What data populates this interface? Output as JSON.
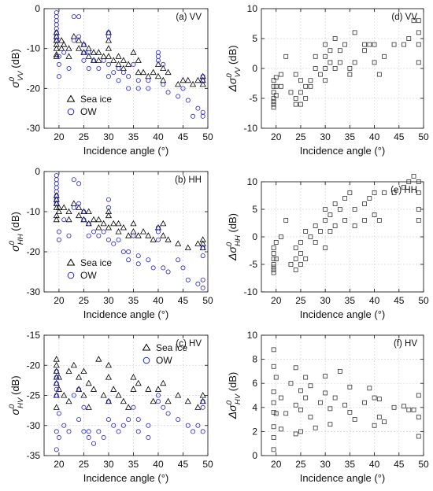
{
  "figure": {
    "colors": {
      "sea_ice": "#000000",
      "ow": "#2323d8",
      "diff": "#333333"
    },
    "legend": {
      "sea_ice": "Sea ice",
      "ow": "OW"
    }
  },
  "chart_data": [
    {
      "id": "a",
      "type": "scatter",
      "panel_label": "(a) VV",
      "xlabel": "Incidence angle (°)",
      "ylabel": {
        "main": "σ",
        "sup": "0",
        "sub": "VV",
        "unit": "(dB)"
      },
      "xlim": [
        17,
        50
      ],
      "ylim": [
        -30,
        0
      ],
      "xticks": [
        20,
        25,
        30,
        35,
        40,
        45,
        50
      ],
      "yticks": [
        0,
        -10,
        -20,
        -30
      ],
      "grid": true,
      "legend_position": "bottom-left",
      "series": [
        {
          "name": "Sea ice",
          "marker": "triangle",
          "x": [
            19.5,
            19.5,
            19.5,
            19.5,
            19.5,
            19.5,
            19.5,
            20.5,
            20.5,
            21,
            22,
            22,
            23,
            24,
            24,
            25,
            25,
            26,
            26,
            27,
            27,
            28,
            28,
            29,
            30,
            30,
            30,
            30,
            31,
            32,
            32,
            33,
            33,
            34,
            35,
            36,
            36,
            37,
            38,
            39,
            40,
            40,
            41,
            41,
            42,
            44,
            45,
            46,
            47,
            48,
            49,
            49,
            49
          ],
          "y": [
            -6,
            -7,
            -8,
            -9,
            -10,
            -11.5,
            -12,
            -8,
            -10,
            -9,
            -10,
            -12,
            -7,
            -8,
            -10,
            -9,
            -11,
            -10,
            -12,
            -11,
            -13,
            -11,
            -13,
            -12,
            -6,
            -8,
            -10,
            -12,
            -13,
            -12,
            -14,
            -13,
            -15,
            -14,
            -11,
            -13,
            -16,
            -16,
            -17,
            -16,
            -14,
            -17,
            -15,
            -18,
            -16,
            -19,
            -18,
            -18,
            -19,
            -18,
            -17,
            -18,
            -19
          ]
        },
        {
          "name": "OW",
          "marker": "circle",
          "x": [
            19.5,
            19.5,
            19.5,
            19.5,
            19.5,
            19.5,
            19.5,
            19.5,
            20,
            20,
            20,
            21,
            22,
            23,
            23,
            24,
            24,
            25,
            25,
            25,
            26,
            26,
            27,
            28,
            29,
            30,
            30,
            30,
            30,
            31,
            32,
            32,
            33,
            34,
            34,
            35,
            36,
            36,
            38,
            38,
            40,
            40,
            40,
            41,
            41,
            42,
            44,
            45,
            46,
            47,
            48,
            49,
            49,
            49,
            49
          ],
          "y": [
            -1,
            -2,
            -3,
            -4,
            -5,
            -6,
            -7,
            -8,
            -12,
            -14,
            -17,
            -11,
            -15,
            -2,
            -8,
            -2,
            -7,
            -9,
            -11,
            -13,
            -11,
            -15,
            -13,
            -15,
            -13,
            -6,
            -7,
            -14,
            -17,
            -16,
            -15,
            -18,
            -16,
            -17,
            -20,
            -14,
            -18,
            -20,
            -18,
            -20,
            -11,
            -12,
            -13,
            -14,
            -19,
            -21,
            -22,
            -20,
            -23,
            -27,
            -25,
            -17,
            -18,
            -26,
            -27
          ]
        }
      ]
    },
    {
      "id": "d",
      "type": "scatter",
      "panel_label": "(d) VV",
      "xlabel": "Incidence angle (°)",
      "ylabel": {
        "main": "Δσ",
        "sup": "0",
        "sub": "VV",
        "unit": "(dB)"
      },
      "xlim": [
        17,
        50
      ],
      "ylim": [
        -10,
        10
      ],
      "xticks": [
        20,
        25,
        30,
        35,
        40,
        45,
        50
      ],
      "yticks": [
        10,
        5,
        0,
        -5,
        -10
      ],
      "grid": true,
      "series": [
        {
          "name": "",
          "marker": "square",
          "x": [
            19.5,
            19.5,
            19.5,
            19.5,
            19.5,
            19.5,
            19.5,
            20,
            20,
            20,
            21,
            21,
            22,
            23,
            24,
            24,
            24,
            25,
            25,
            25,
            26,
            26,
            27,
            27,
            28,
            28,
            29,
            30,
            30,
            30,
            30,
            31,
            31,
            32,
            32,
            33,
            33,
            34,
            35,
            35,
            36,
            36,
            38,
            38,
            39,
            40,
            40,
            41,
            42,
            44,
            46,
            47,
            48,
            49,
            49,
            49,
            49
          ],
          "y": [
            -2,
            -3,
            -4,
            -5,
            -5.5,
            -6,
            -6.5,
            -1.5,
            -3,
            -4.5,
            -1,
            -3,
            2,
            -4,
            -1,
            -5,
            -6,
            -2,
            -4,
            -6,
            -3,
            -5,
            -2,
            -3,
            2,
            0,
            -1,
            4,
            2,
            0,
            -2,
            3,
            1,
            5,
            0,
            3,
            1,
            4,
            0,
            -1,
            6,
            1,
            4,
            3,
            4,
            4,
            1,
            -1,
            2,
            4,
            4,
            5,
            8,
            8,
            6,
            4,
            1
          ]
        }
      ]
    },
    {
      "id": "b",
      "type": "scatter",
      "panel_label": "(b) HH",
      "xlabel": "Incidence angle (°)",
      "ylabel": {
        "main": "σ",
        "sup": "0",
        "sub": "HH",
        "unit": "(dB)"
      },
      "xlim": [
        17,
        50
      ],
      "ylim": [
        -30,
        0
      ],
      "xticks": [
        20,
        25,
        30,
        35,
        40,
        45,
        50
      ],
      "yticks": [
        0,
        -10,
        -20,
        -30
      ],
      "grid": true,
      "legend_position": "bottom-left",
      "series": [
        {
          "name": "Sea ice",
          "marker": "triangle",
          "x": [
            19.5,
            19.5,
            19.5,
            19.5,
            19.5,
            19.5,
            20,
            20,
            21,
            22,
            22,
            23,
            24,
            24,
            25,
            25,
            26,
            26,
            27,
            28,
            28,
            29,
            30,
            30,
            30,
            31,
            32,
            32,
            33,
            34,
            35,
            35,
            36,
            37,
            38,
            39,
            40,
            41,
            41,
            42,
            44,
            46,
            48,
            49,
            49,
            49
          ],
          "y": [
            -6,
            -7,
            -8,
            -9,
            -11,
            -12,
            -9,
            -10,
            -9,
            -10,
            -12,
            -8,
            -9,
            -11,
            -10,
            -12,
            -10,
            -13,
            -12,
            -12,
            -14,
            -13,
            -10,
            -11,
            -14,
            -13,
            -13,
            -15,
            -14,
            -16,
            -13,
            -15,
            -16,
            -15,
            -16,
            -17,
            -14,
            -13,
            -16,
            -17,
            -18,
            -19,
            -18,
            -17,
            -18,
            -19
          ]
        },
        {
          "name": "OW",
          "marker": "circle",
          "x": [
            19.5,
            19.5,
            19.5,
            19.5,
            19.5,
            19.5,
            19.5,
            19.5,
            20,
            20,
            21,
            22,
            23,
            23,
            24,
            24,
            25,
            25,
            26,
            26,
            27,
            28,
            29,
            30,
            30,
            30,
            31,
            32,
            33,
            34,
            34,
            35,
            36,
            36,
            38,
            39,
            40,
            40,
            40,
            41,
            42,
            44,
            45,
            46,
            48,
            49,
            49,
            49,
            49
          ],
          "y": [
            -1,
            -2,
            -3,
            -4,
            -5,
            -6,
            -7,
            -8,
            -15,
            -17,
            -12,
            -16,
            -2,
            -9,
            -3,
            -8,
            -10,
            -12,
            -13,
            -16,
            -15,
            -16,
            -15,
            -7,
            -9,
            -17,
            -18,
            -17,
            -20,
            -20,
            -22,
            -16,
            -21,
            -23,
            -22,
            -24,
            -14,
            -15,
            -17,
            -24,
            -25,
            -22,
            -24,
            -27,
            -28,
            -19,
            -21,
            -27,
            -29
          ]
        }
      ]
    },
    {
      "id": "e",
      "type": "scatter",
      "panel_label": "(e) HH",
      "xlabel": "Incidence angle (°)",
      "ylabel": {
        "main": "Δσ",
        "sup": "0",
        "sub": "HH",
        "unit": "(dB)"
      },
      "xlim": [
        17,
        50
      ],
      "ylim": [
        -10,
        10
      ],
      "xticks": [
        20,
        25,
        30,
        35,
        40,
        45,
        50
      ],
      "yticks": [
        10,
        5,
        0,
        -5,
        -10
      ],
      "grid": true,
      "series": [
        {
          "name": "",
          "marker": "square",
          "x": [
            19.5,
            19.5,
            19.5,
            19.5,
            19.5,
            19.5,
            19.5,
            20,
            20,
            21,
            22,
            23,
            24,
            24,
            24,
            25,
            25,
            25,
            26,
            26,
            27,
            28,
            28,
            29,
            30,
            30,
            30,
            31,
            31,
            32,
            32,
            33,
            34,
            34,
            35,
            36,
            36,
            38,
            38,
            39,
            40,
            40,
            41,
            42,
            44,
            46,
            47,
            48,
            49,
            49,
            49,
            49
          ],
          "y": [
            -2,
            -3,
            -4,
            -5,
            -5.5,
            -6,
            -6.5,
            -1,
            -4,
            0,
            3,
            -5,
            -2,
            -4,
            -6,
            -1,
            -3,
            -5,
            1,
            -4,
            0,
            2,
            -1,
            1,
            5,
            3,
            -2,
            4,
            1,
            6,
            2,
            5,
            7,
            3,
            8,
            5,
            2,
            6,
            3,
            7,
            8,
            4,
            3,
            8,
            8,
            9,
            10,
            11,
            10,
            8,
            5,
            3
          ]
        }
      ]
    },
    {
      "id": "c",
      "type": "scatter",
      "panel_label": "(c) HV",
      "xlabel": "Incidence angle (°)",
      "ylabel": {
        "main": "σ",
        "sup": "0",
        "sub": "HV",
        "unit": "(dB)"
      },
      "xlim": [
        17,
        50
      ],
      "ylim": [
        -35,
        -15
      ],
      "xticks": [
        20,
        25,
        30,
        35,
        40,
        45,
        50
      ],
      "yticks": [
        -15,
        -20,
        -25,
        -30,
        -35
      ],
      "grid": true,
      "legend_position": "top-right",
      "series": [
        {
          "name": "Sea ice",
          "marker": "triangle",
          "x": [
            19.5,
            19.5,
            19.5,
            19.5,
            19.5,
            19.5,
            19.5,
            20,
            20,
            21,
            22,
            22,
            23,
            24,
            24,
            25,
            25,
            26,
            26,
            27,
            28,
            29,
            30,
            30,
            30,
            31,
            32,
            33,
            34,
            35,
            35,
            36,
            38,
            39,
            40,
            41,
            42,
            44,
            46,
            48,
            49,
            49
          ],
          "y": [
            -19,
            -20,
            -21,
            -22,
            -23,
            -25,
            -27,
            -22,
            -24,
            -25,
            -21,
            -26,
            -20,
            -22,
            -24,
            -21,
            -25,
            -23,
            -27,
            -24,
            -19,
            -25,
            -20,
            -22,
            -26,
            -24,
            -25,
            -26,
            -27,
            -22,
            -24,
            -23,
            -24,
            -26,
            -24,
            -23,
            -26,
            -25,
            -26,
            -27,
            -25,
            -26
          ]
        },
        {
          "name": "OW",
          "marker": "circle",
          "x": [
            19.5,
            19.5,
            19.5,
            19.5,
            19.5,
            19.5,
            19.5,
            20,
            20,
            21,
            22,
            23,
            24,
            24,
            25,
            25,
            26,
            26,
            27,
            28,
            29,
            30,
            30,
            31,
            32,
            33,
            34,
            35,
            36,
            36,
            38,
            38,
            40,
            40,
            41,
            42,
            44,
            46,
            47,
            48,
            49,
            49,
            49
          ],
          "y": [
            -21,
            -22,
            -23,
            -24,
            -25,
            -31,
            -34,
            -28,
            -32,
            -30,
            -31,
            -25,
            -24,
            -29,
            -27,
            -31,
            -31,
            -32,
            -33,
            -31,
            -32,
            -26,
            -29,
            -30,
            -31,
            -30,
            -29,
            -27,
            -29,
            -31,
            -30,
            -32,
            -25,
            -26,
            -27,
            -28,
            -29,
            -30,
            -31,
            -30,
            -26,
            -27,
            -31
          ]
        }
      ]
    },
    {
      "id": "f",
      "type": "scatter",
      "panel_label": "(f) HV",
      "xlabel": "Incidence angle (°)",
      "ylabel": {
        "main": "Δσ",
        "sup": "0",
        "sub": "HV",
        "unit": "(dB)"
      },
      "xlim": [
        17,
        50
      ],
      "ylim": [
        0,
        10
      ],
      "xticks": [
        20,
        25,
        30,
        35,
        40,
        45,
        50
      ],
      "yticks": [
        10,
        8,
        6,
        4,
        2,
        0
      ],
      "grid": true,
      "series": [
        {
          "name": "",
          "marker": "square",
          "x": [
            19.5,
            19.5,
            19.5,
            19.5,
            19.5,
            19.5,
            19.5,
            19.5,
            20,
            20,
            21,
            21,
            22,
            23,
            24,
            24,
            24,
            25,
            25,
            25,
            26,
            26,
            27,
            27,
            28,
            29,
            30,
            30,
            31,
            31,
            32,
            33,
            34,
            35,
            35,
            36,
            38,
            39,
            40,
            40,
            41,
            41,
            42,
            44,
            46,
            47,
            48,
            49,
            49,
            49
          ],
          "y": [
            8.8,
            7.4,
            5.3,
            4.4,
            3.6,
            2.4,
            1.5,
            0.5,
            6.5,
            3.5,
            4.8,
            2.2,
            3.5,
            6.0,
            7.3,
            4.2,
            1.8,
            5.4,
            3.8,
            2.0,
            6.5,
            4.8,
            5.8,
            3.2,
            2.3,
            4.4,
            6.6,
            5.2,
            3.9,
            2.6,
            4.8,
            7.0,
            4.2,
            5.7,
            3.6,
            3.0,
            4.4,
            5.6,
            4.8,
            2.5,
            3.2,
            4.7,
            2.8,
            4.0,
            4.1,
            3.8,
            3.8,
            5.0,
            3.2,
            1.6
          ]
        }
      ]
    }
  ]
}
